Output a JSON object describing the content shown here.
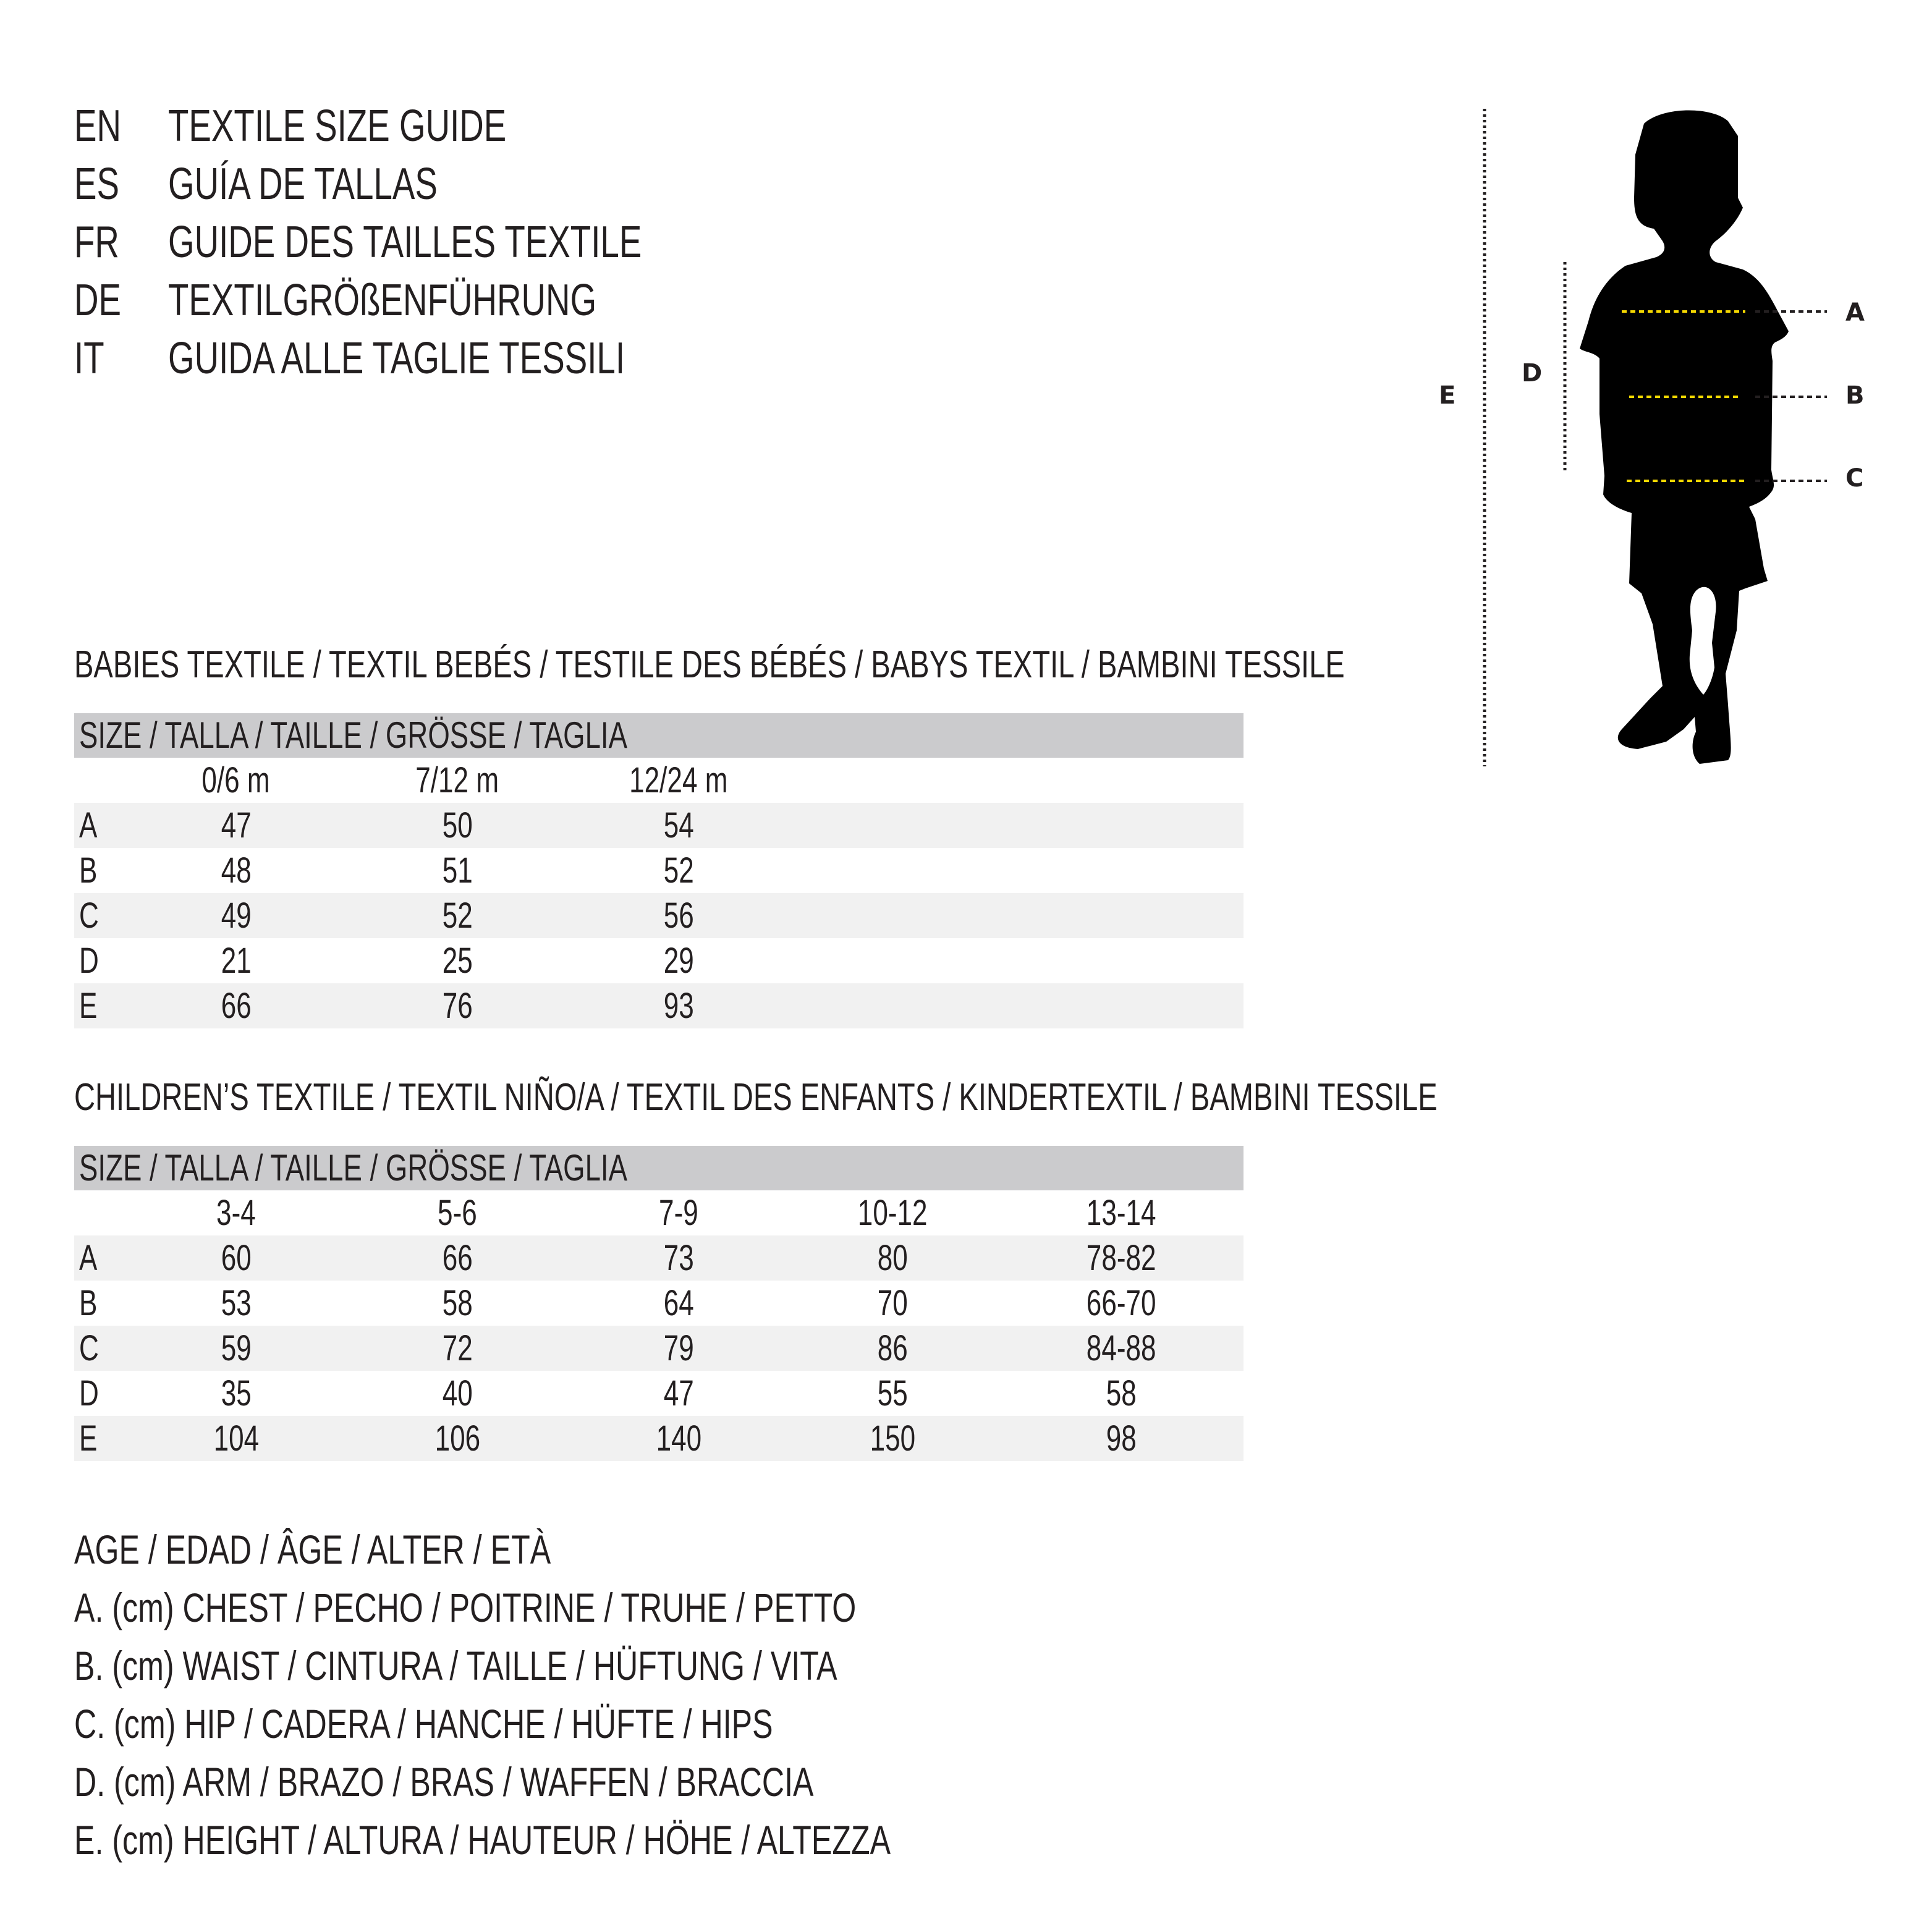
{
  "titles": [
    {
      "code": "EN",
      "text": "TEXTILE SIZE GUIDE"
    },
    {
      "code": "ES",
      "text": "GUÍA DE TALLAS"
    },
    {
      "code": "FR",
      "text": "GUIDE DES TAILLES TEXTILE"
    },
    {
      "code": "DE",
      "text": "TEXTILGRÖßENFÜHRUNG"
    },
    {
      "code": "IT",
      "text": "GUIDA ALLE TAGLIE TESSILI"
    }
  ],
  "babies": {
    "heading": "BABIES TEXTILE / TEXTIL BEBÉS / TESTILE DES BÉBÉS / BABYS TEXTIL / BAMBINI TESSILE",
    "size_header": "SIZE / TALLA / TAILLE / GRÖSSE / TAGLIA",
    "columns": [
      "0/6 m",
      "7/12 m",
      "12/24 m"
    ],
    "rows": [
      {
        "label": "A",
        "values": [
          "47",
          "50",
          "54"
        ]
      },
      {
        "label": "B",
        "values": [
          "48",
          "51",
          "52"
        ]
      },
      {
        "label": "C",
        "values": [
          "49",
          "52",
          "56"
        ]
      },
      {
        "label": "D",
        "values": [
          "21",
          "25",
          "29"
        ]
      },
      {
        "label": "E",
        "values": [
          "66",
          "76",
          "93"
        ]
      }
    ]
  },
  "children": {
    "heading": "CHILDREN’S TEXTILE / TEXTIL NIÑO/A / TEXTIL DES ENFANTS / KINDERTEXTIL / BAMBINI TESSILE",
    "size_header": "SIZE / TALLA / TAILLE / GRÖSSE / TAGLIA",
    "columns": [
      "3-4",
      "5-6",
      "7-9",
      "10-12",
      "13-14"
    ],
    "rows": [
      {
        "label": "A",
        "values": [
          "60",
          "66",
          "73",
          "80",
          "78-82"
        ]
      },
      {
        "label": "B",
        "values": [
          "53",
          "58",
          "64",
          "70",
          "66-70"
        ]
      },
      {
        "label": "C",
        "values": [
          "59",
          "72",
          "79",
          "86",
          "84-88"
        ]
      },
      {
        "label": "D",
        "values": [
          "35",
          "40",
          "47",
          "55",
          "58"
        ]
      },
      {
        "label": "E",
        "values": [
          "104",
          "106",
          "140",
          "150",
          "98"
        ]
      }
    ]
  },
  "legend": [
    "AGE / EDAD / ÂGE / ALTER / ETÀ",
    "A. (cm) CHEST / PECHO / POITRINE / TRUHE / PETTO",
    "B. (cm) WAIST / CINTURA / TAILLE / HÜFTUNG / VITA",
    "C. (cm) HIP / CADERA / HANCHE / HÜFTE / HIPS",
    "D. (cm) ARM / BRAZO / BRAS / WAFFEN / BRACCIA",
    "E. (cm) HEIGHT / ALTURA / HAUTEUR / HÖHE / ALTEZZA"
  ],
  "figure": {
    "labels": {
      "A": "A",
      "B": "B",
      "C": "C",
      "D": "D",
      "E": "E"
    },
    "colors": {
      "silhouette": "#000000",
      "measure_line": "#f5d800",
      "guide_line": "#231f20",
      "header_bar": "#cbcbcd",
      "shaded_row": "#f1f1f1"
    }
  }
}
